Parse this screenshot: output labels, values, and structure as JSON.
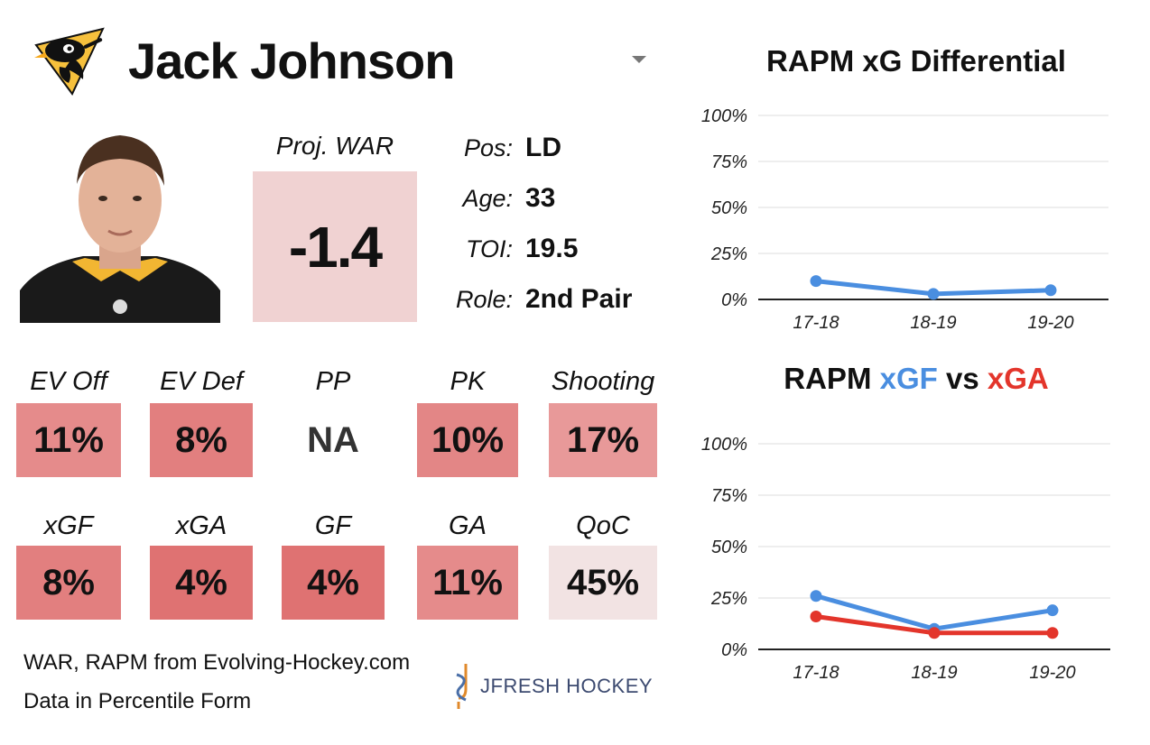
{
  "player": {
    "name": "Jack Johnson",
    "photo_alt": "",
    "proj_war_label": "Proj. WAR",
    "proj_war_value": "-1.4",
    "info": [
      {
        "label": "Pos:",
        "value": "LD"
      },
      {
        "label": "Age:",
        "value": "33"
      },
      {
        "label": "TOI:",
        "value": "19.5"
      },
      {
        "label": "Role:",
        "value": "2nd Pair"
      }
    ]
  },
  "stats_row1": [
    {
      "label": "EV Off",
      "value": "11%",
      "color": "#e58b8b"
    },
    {
      "label": "EV Def",
      "value": "8%",
      "color": "#e27f7f"
    },
    {
      "label": "PP",
      "value": "NA",
      "color": "#ffffff"
    },
    {
      "label": "PK",
      "value": "10%",
      "color": "#e38686"
    },
    {
      "label": "Shooting",
      "value": "17%",
      "color": "#e89999"
    }
  ],
  "stats_row2": [
    {
      "label": "xGF",
      "value": "8%",
      "color": "#e27f7f"
    },
    {
      "label": "xGA",
      "value": "4%",
      "color": "#df7272"
    },
    {
      "label": "GF",
      "value": "4%",
      "color": "#df7272"
    },
    {
      "label": "GA",
      "value": "11%",
      "color": "#e58b8b"
    },
    {
      "label": "QoC",
      "value": "45%",
      "color": "#f2e3e3"
    }
  ],
  "footer": {
    "line1": "WAR, RAPM from  Evolving-Hockey.com",
    "line2": "Data in Percentile Form",
    "brand": "JFRESH HOCKEY"
  },
  "colors": {
    "xgf": "#4a8ee0",
    "xga": "#e3352b",
    "grid": "#dddddd",
    "axis": "#222222"
  },
  "chart_data": [
    {
      "type": "line",
      "title": "RAPM xG Differential",
      "categories": [
        "17-18",
        "18-19",
        "19-20"
      ],
      "ylim": [
        0,
        100
      ],
      "yticks": [
        "0%",
        "25%",
        "50%",
        "75%",
        "100%"
      ],
      "series": [
        {
          "values": [
            10,
            3,
            5
          ],
          "color": "#4a8ee0"
        }
      ]
    },
    {
      "type": "line",
      "title_parts": [
        "RAPM",
        "xGF",
        "vs",
        "xGA"
      ],
      "categories": [
        "17-18",
        "18-19",
        "19-20"
      ],
      "ylim": [
        0,
        100
      ],
      "yticks": [
        "0%",
        "25%",
        "50%",
        "75%",
        "100%"
      ],
      "series": [
        {
          "name": "xGF",
          "values": [
            26,
            10,
            19
          ],
          "color": "#4a8ee0"
        },
        {
          "name": "xGA",
          "values": [
            16,
            8,
            8
          ],
          "color": "#e3352b"
        }
      ]
    }
  ]
}
